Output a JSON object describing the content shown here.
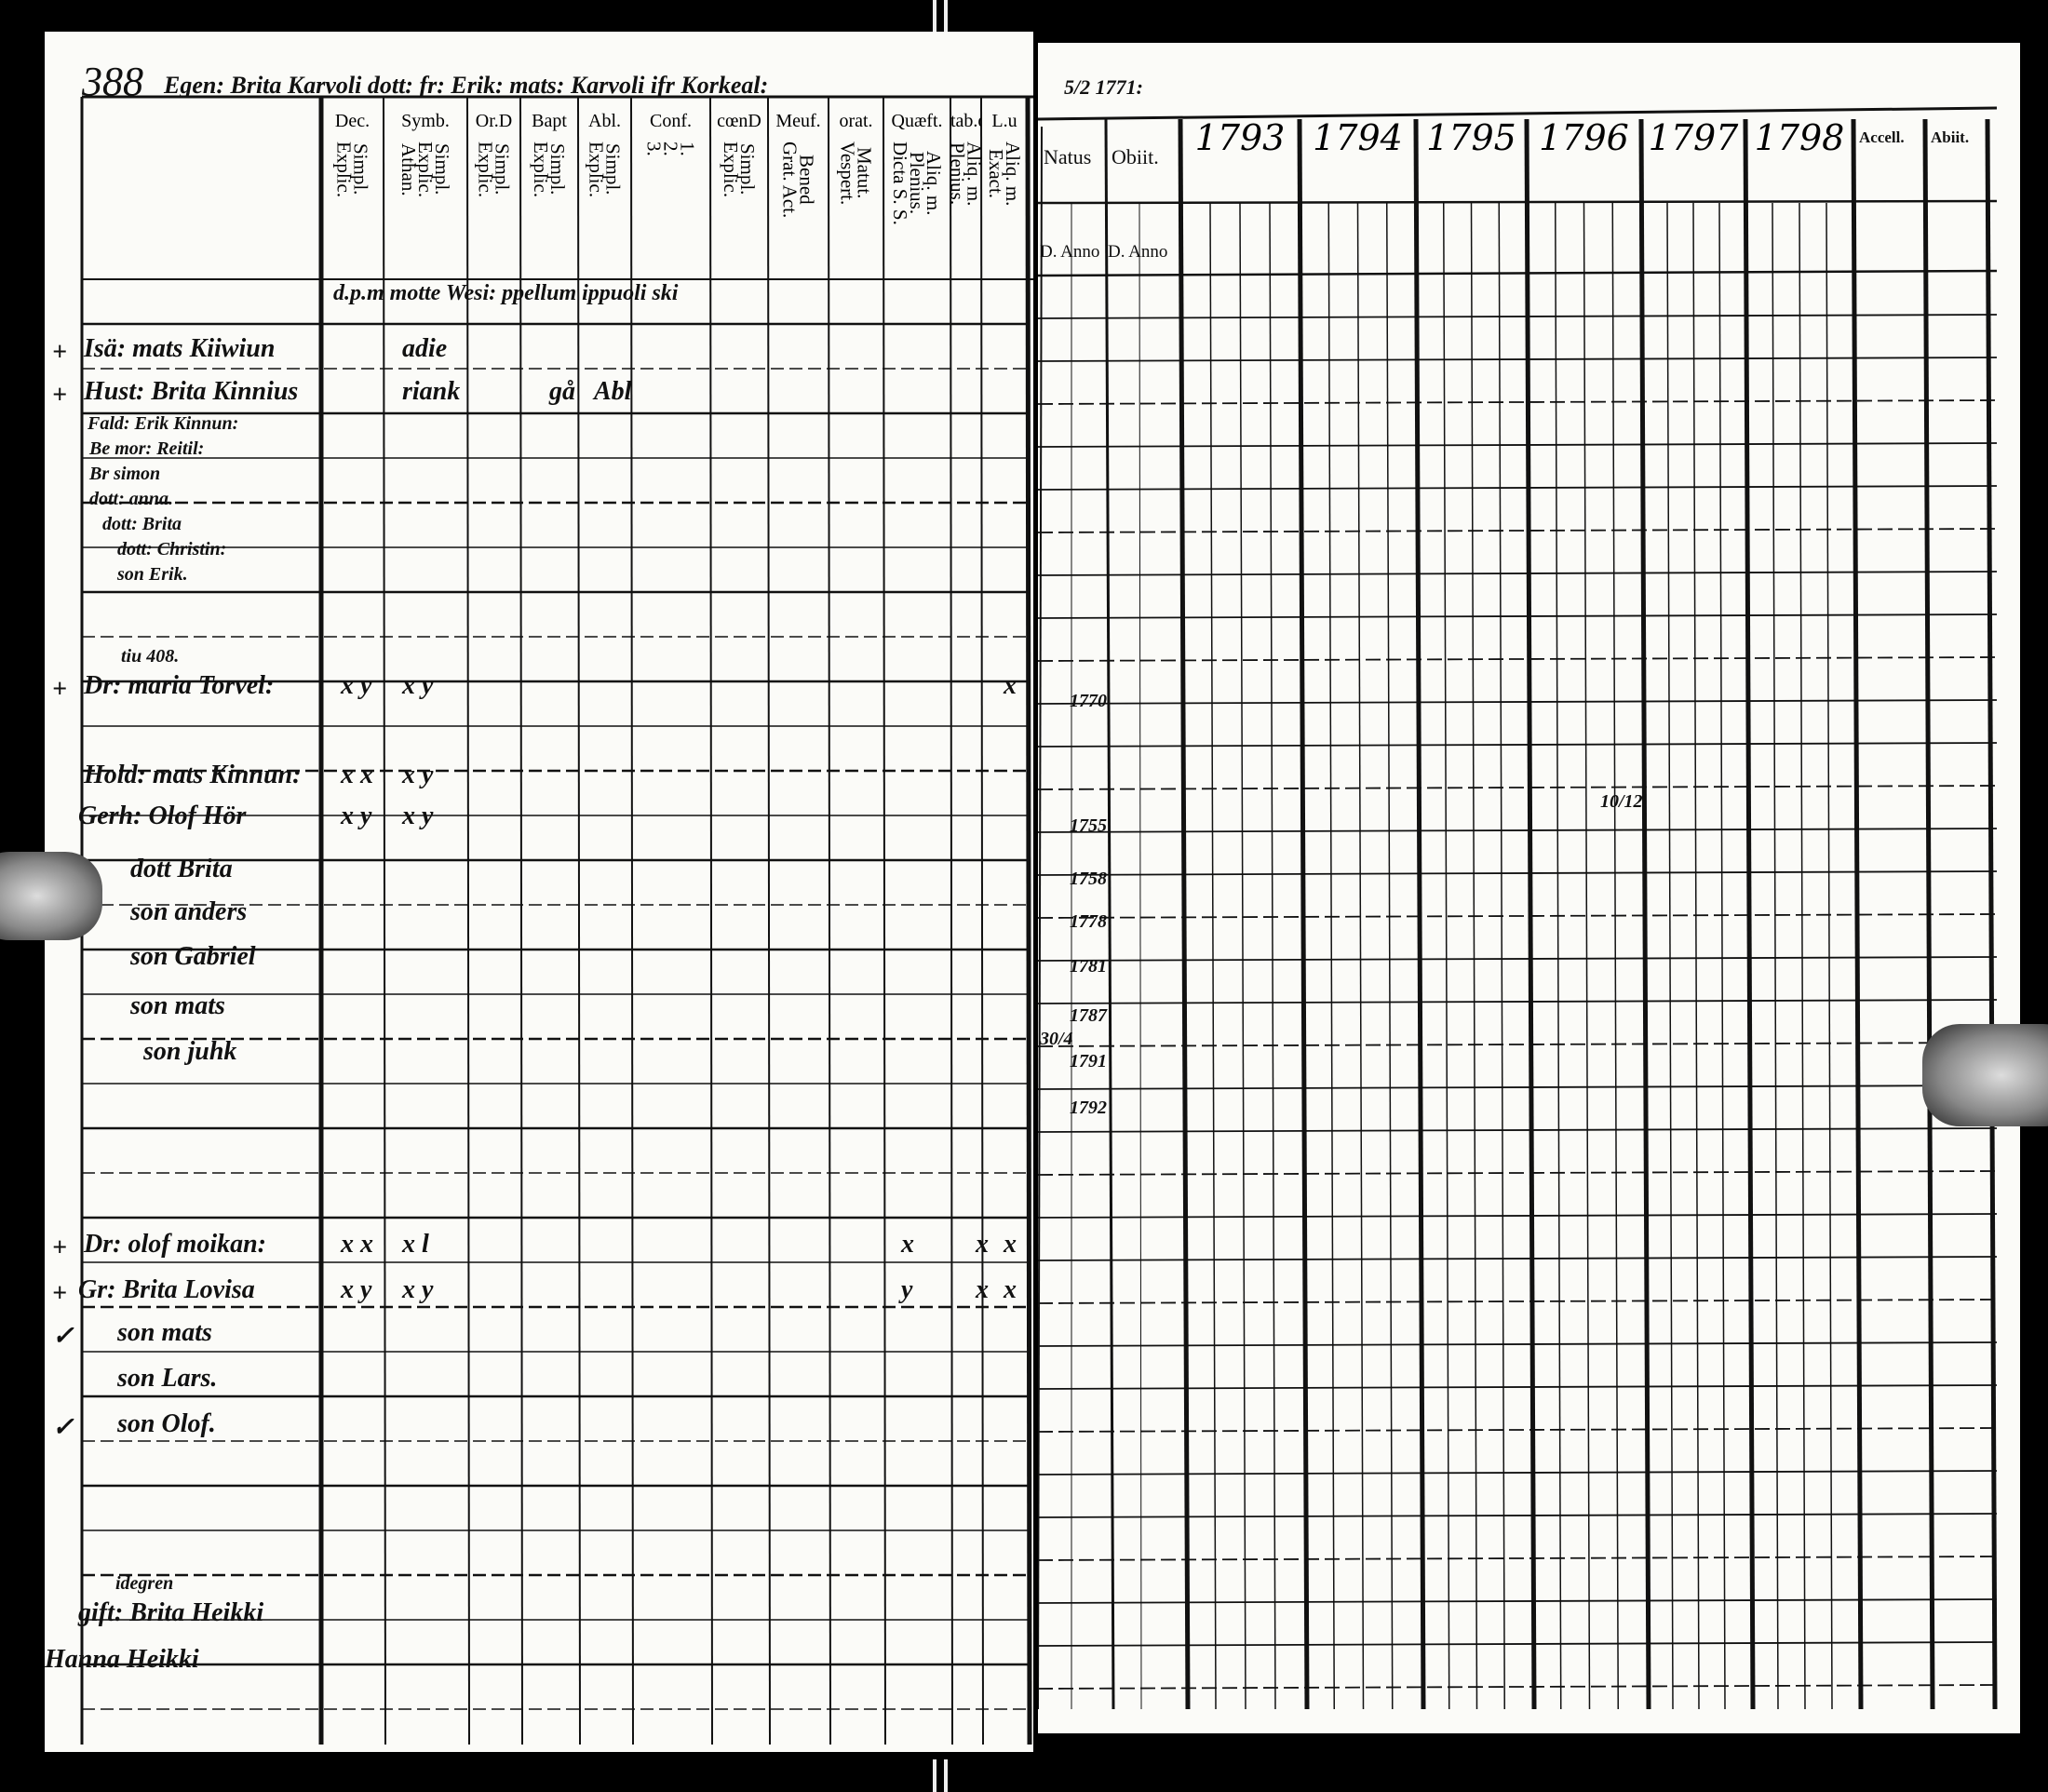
{
  "left_page": {
    "page_number": "388",
    "heading": "Egen: Brita Karvoli  dott: fr: Erik: mats: Karvoli ifr Korkeal:",
    "column_headers": [
      {
        "label": "Dec.",
        "sub": [
          "Explic.",
          "Simpl."
        ]
      },
      {
        "label": "Symb.",
        "sub": [
          "Athan.",
          "Explic.",
          "Simpl."
        ]
      },
      {
        "label": "Or.D",
        "sub": [
          "Explic.",
          "Simpl."
        ]
      },
      {
        "label": "Bapt",
        "sub": [
          "Explic.",
          "Simpl."
        ]
      },
      {
        "label": "Abl.",
        "sub": [
          "Explic.",
          "Simpl."
        ]
      },
      {
        "label": "Conf.",
        "sub": [
          "3.",
          "2.",
          "1."
        ]
      },
      {
        "label": "cœnD",
        "sub": [
          "Explic.",
          "Simpl."
        ]
      },
      {
        "label": "Meuf.",
        "sub": [
          "Grat. Act.",
          "Bened"
        ]
      },
      {
        "label": "orat.",
        "sub": [
          "Vespert.",
          "Matut."
        ]
      },
      {
        "label": "Quæft.",
        "sub": [
          "Dicta S. S.",
          "Plenius.",
          "Aliq. m."
        ]
      },
      {
        "label": "tab.œ.",
        "sub": [
          "Plenius.",
          "Aliq. m."
        ]
      },
      {
        "label": "L.u",
        "sub": [
          "Exact.",
          "Aliq. m."
        ]
      }
    ],
    "notes_row": "d.p.m motte Wesi: ppellum ippuoli ski",
    "entries": [
      {
        "mark": "+",
        "name": "Isä: mats Kiiwiun",
        "symb": "adie"
      },
      {
        "mark": "+",
        "name": "Hust: Brita Kinnius",
        "symb": "riank",
        "bapt": "gå",
        "abl": "Abl"
      },
      {
        "name": "Fald: Erik Kinnun:"
      },
      {
        "name": "Be mor: Reitil:"
      },
      {
        "name": "Br simon"
      },
      {
        "name": "dott: anna."
      },
      {
        "name": "dott: Brita"
      },
      {
        "name": "dott: Christin:"
      },
      {
        "name": "son Erik."
      },
      {
        "note": "tiu 408.",
        "mark": "+",
        "name": "Dr: maria Torvel:",
        "dec": "x y",
        "symb": "x y",
        "lu": "x",
        "natus": "1770"
      },
      {
        "name": "Hold: mats Kinnun:",
        "dec": "x x",
        "symb": "x y"
      },
      {
        "name": "Gerh: Olof Hör",
        "dec": "x y",
        "symb": "x y",
        "natus": "1755",
        "note_1796": "10/12"
      },
      {
        "name": "dott Brita",
        "natus": "1758"
      },
      {
        "name": "son anders",
        "natus": "1778"
      },
      {
        "name": "son Gabriel",
        "natus": "1781"
      },
      {
        "name": "son mats",
        "natus": "1787"
      },
      {
        "name": "son juhk",
        "natus": "1791",
        "natus_day": "30/4"
      },
      {
        "natus": "1792"
      },
      {
        "mark": "+",
        "name": "Dr: olof moikan:",
        "dec": "x x",
        "symb": "x l",
        "quaest": "x",
        "tab": "x",
        "lu": "x"
      },
      {
        "mark": "+",
        "name": "Gr: Brita Lovisa",
        "dec": "x y",
        "symb": "x y",
        "quaest": "y",
        "tab": "x",
        "lu": "x"
      },
      {
        "mark": "✓",
        "name": "son mats"
      },
      {
        "name": "son Lars."
      },
      {
        "mark": "✓",
        "name": "son Olof."
      },
      {
        "note": "idegren",
        "name": "gift: Brita Heikki"
      },
      {
        "name": "Hanna Heikki"
      }
    ]
  },
  "right_page": {
    "date_note": "5/2 1771:",
    "headers": [
      "Natus",
      "Obiit.",
      "1793",
      "1794",
      "1795",
      "1796",
      "1797",
      "1798",
      "Accell.",
      "Abiit."
    ],
    "sub_headers": [
      "D. Anno",
      "D. Anno"
    ]
  }
}
